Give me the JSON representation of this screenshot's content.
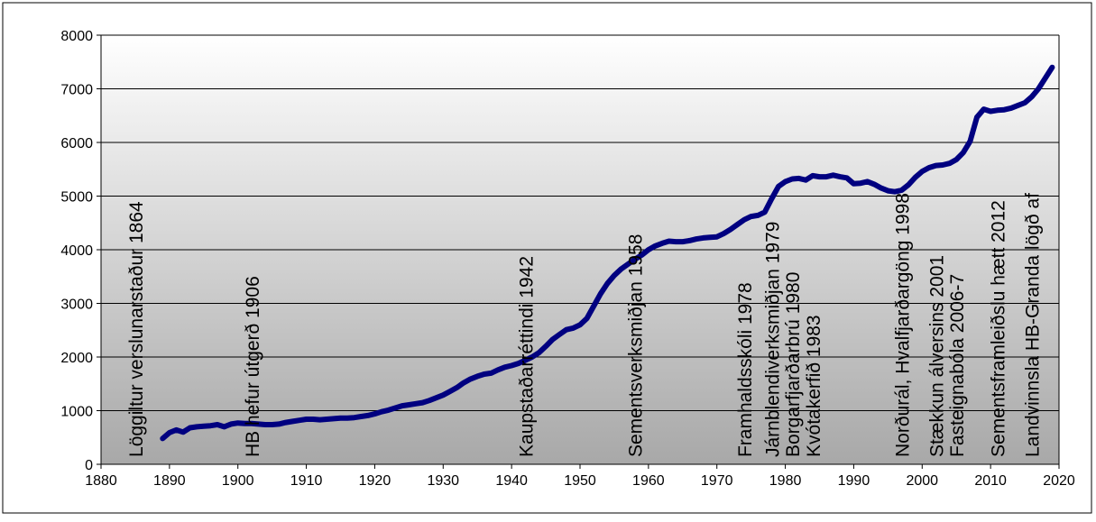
{
  "chart_data": {
    "type": "line",
    "title": "",
    "xlabel": "",
    "ylabel": "",
    "xlim": [
      1880,
      2020
    ],
    "ylim": [
      0,
      8000
    ],
    "x_ticks": [
      1880,
      1890,
      1900,
      1910,
      1920,
      1930,
      1940,
      1950,
      1960,
      1970,
      1980,
      1990,
      2000,
      2010,
      2020
    ],
    "y_ticks": [
      0,
      1000,
      2000,
      3000,
      4000,
      5000,
      6000,
      7000,
      8000
    ],
    "grid": "horizontal",
    "legend": "none",
    "line_color": "#000080",
    "series": [
      {
        "x": [
          1889,
          1890,
          1891,
          1892,
          1893,
          1894,
          1895,
          1896,
          1897,
          1898,
          1899,
          1900,
          1901,
          1902,
          1903,
          1904,
          1905,
          1906,
          1907,
          1908,
          1909,
          1910,
          1911,
          1912,
          1913,
          1914,
          1915,
          1916,
          1917,
          1918,
          1919,
          1920,
          1921,
          1922,
          1923,
          1924,
          1925,
          1926,
          1927,
          1928,
          1929,
          1930,
          1931,
          1932,
          1933,
          1934,
          1935,
          1936,
          1937,
          1938,
          1939,
          1940,
          1941,
          1942,
          1943,
          1944,
          1945,
          1946,
          1947,
          1948,
          1949,
          1950,
          1951,
          1952,
          1953,
          1954,
          1955,
          1956,
          1957,
          1958,
          1959,
          1960,
          1961,
          1962,
          1963,
          1964,
          1965,
          1966,
          1967,
          1968,
          1969,
          1970,
          1971,
          1972,
          1973,
          1974,
          1975,
          1976,
          1977,
          1978,
          1979,
          1980,
          1981,
          1982,
          1983,
          1984,
          1985,
          1986,
          1987,
          1988,
          1989,
          1990,
          1991,
          1992,
          1993,
          1994,
          1995,
          1996,
          1997,
          1998,
          1999,
          2000,
          2001,
          2002,
          2003,
          2004,
          2005,
          2006,
          2007,
          2008,
          2009,
          2010,
          2011,
          2012,
          2013,
          2014,
          2015,
          2016,
          2017,
          2018,
          2019
        ],
        "values": [
          480,
          590,
          640,
          600,
          680,
          700,
          710,
          720,
          740,
          700,
          750,
          770,
          760,
          760,
          750,
          740,
          740,
          750,
          780,
          800,
          820,
          840,
          840,
          830,
          840,
          850,
          860,
          860,
          870,
          890,
          910,
          940,
          980,
          1010,
          1050,
          1090,
          1110,
          1130,
          1150,
          1190,
          1240,
          1290,
          1360,
          1430,
          1520,
          1590,
          1640,
          1680,
          1700,
          1760,
          1810,
          1840,
          1880,
          1940,
          2000,
          2080,
          2200,
          2330,
          2420,
          2510,
          2540,
          2600,
          2720,
          2950,
          3180,
          3370,
          3520,
          3640,
          3730,
          3820,
          3900,
          4000,
          4070,
          4120,
          4160,
          4150,
          4150,
          4170,
          4200,
          4220,
          4230,
          4240,
          4300,
          4380,
          4470,
          4560,
          4620,
          4640,
          4700,
          4950,
          5180,
          5270,
          5320,
          5330,
          5300,
          5380,
          5360,
          5360,
          5390,
          5360,
          5340,
          5230,
          5240,
          5270,
          5220,
          5150,
          5100,
          5080,
          5110,
          5210,
          5350,
          5460,
          5530,
          5570,
          5580,
          5610,
          5680,
          5810,
          6020,
          6470,
          6620,
          6580,
          6600,
          6610,
          6640,
          6690,
          6740,
          6850,
          7000,
          7200,
          7400
        ]
      }
    ],
    "annotations": [
      {
        "x": 1885,
        "text": "Löggiltur verslunarstaður 1864"
      },
      {
        "x": 1902,
        "text": "HB hefur útgerð 1906"
      },
      {
        "x": 1942,
        "text": "Kaupstaðarréttindi 1942"
      },
      {
        "x": 1958,
        "text": "Sementsverksmiðjan 1958"
      },
      {
        "x": 1974,
        "text": "Framhaldsskóli 1978"
      },
      {
        "x": 1978,
        "text": "Járnblendiverksmiðjan 1979"
      },
      {
        "x": 1981,
        "text": "Borgarfjarðarbrú 1980"
      },
      {
        "x": 1984,
        "text": "Kvótakerfið 1983"
      },
      {
        "x": 1997,
        "text": "Norðurál, Hvalfjarðargöng 1998"
      },
      {
        "x": 2002,
        "text": "Stækkun álversins 2001"
      },
      {
        "x": 2005,
        "text": "Fasteignabóla 2006-7"
      },
      {
        "x": 2011,
        "text": "Sementsframleiðslu hætt 2012"
      },
      {
        "x": 2016,
        "text": "Landvinnsla HB-Granda lögð af"
      }
    ]
  }
}
